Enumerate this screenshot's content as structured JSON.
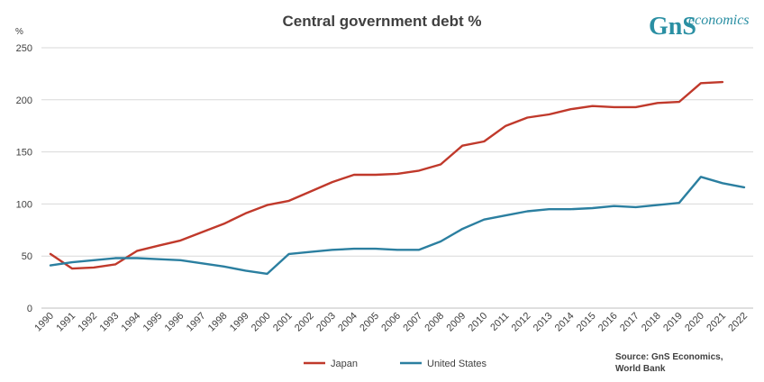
{
  "chart_data": {
    "type": "line",
    "title": "Central government debt %",
    "ylabel": "%",
    "ylim": [
      0,
      250
    ],
    "yticks": [
      0,
      50,
      100,
      150,
      200,
      250
    ],
    "grid": true,
    "legend_position": "bottom",
    "categories": [
      "1990",
      "1991",
      "1992",
      "1993",
      "1994",
      "1995",
      "1996",
      "1997",
      "1998",
      "1999",
      "2000",
      "2001",
      "2002",
      "2003",
      "2004",
      "2005",
      "2006",
      "2007",
      "2008",
      "2009",
      "2010",
      "2011",
      "2012",
      "2013",
      "2014",
      "2015",
      "2016",
      "2017",
      "2018",
      "2019",
      "2020",
      "2021",
      "2022"
    ],
    "series": [
      {
        "name": "Japan",
        "color": "#c0392b",
        "values": [
          52,
          38,
          39,
          42,
          55,
          60,
          65,
          73,
          81,
          91,
          99,
          103,
          112,
          121,
          128,
          128,
          129,
          132,
          138,
          156,
          160,
          175,
          183,
          186,
          191,
          194,
          193,
          193,
          197,
          198,
          216,
          217,
          null
        ]
      },
      {
        "name": "United States",
        "color": "#2b7fa0",
        "values": [
          41,
          44,
          46,
          48,
          48,
          47,
          46,
          43,
          40,
          36,
          33,
          52,
          54,
          56,
          57,
          57,
          56,
          56,
          64,
          76,
          85,
          89,
          93,
          95,
          95,
          96,
          98,
          97,
          99,
          101,
          126,
          120,
          116
        ]
      }
    ],
    "source": [
      "Source: GnS Economics,",
      "World Bank"
    ]
  },
  "logo": {
    "mark": "GnS",
    "word": "economics",
    "color": "#2a8fa3"
  }
}
